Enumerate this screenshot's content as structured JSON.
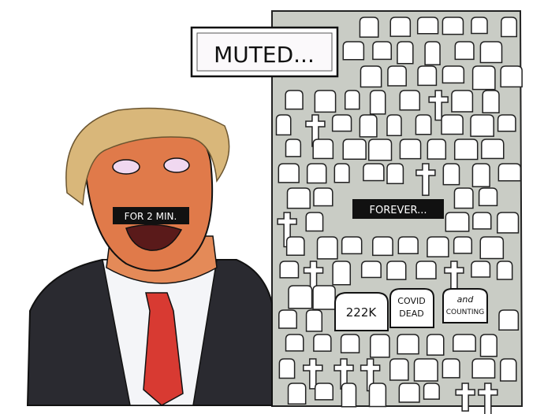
{
  "cartoon": {
    "sign_text": "MUTED...",
    "mouth_bar_text": "FOR 2 MIN.",
    "graveyard_bar_text": "FOREVER...",
    "tombstones": {
      "count_text": "222K",
      "middle_line1": "COVID",
      "middle_line2": "DEAD",
      "right_line1": "and",
      "right_line2": "COUNTING"
    },
    "colors": {
      "graveyard_bg": "#c9ccc5",
      "skin": "#e07a4a",
      "hair": "#d9b77a",
      "suit": "#2a2a30",
      "tie": "#d83a32",
      "bar": "#111111"
    }
  }
}
